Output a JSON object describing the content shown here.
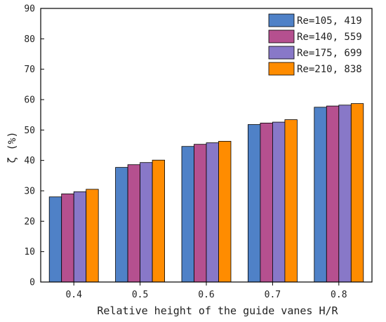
{
  "chart_data": {
    "type": "bar",
    "title": "",
    "xlabel": "Relative height of the guide vanes H/R",
    "ylabel": "ζ (%)",
    "categories": [
      "0.4",
      "0.5",
      "0.6",
      "0.7",
      "0.8"
    ],
    "ylim": [
      0,
      90
    ],
    "yticks": [
      "0",
      "10",
      "20",
      "30",
      "40",
      "50",
      "60",
      "70",
      "80",
      "90"
    ],
    "grid": false,
    "legend_position": "top-right",
    "series": [
      {
        "name": "Re=105, 419",
        "color": "#4f81c7",
        "values": [
          28.0,
          37.7,
          44.6,
          51.8,
          57.5
        ]
      },
      {
        "name": "Re=140, 559",
        "color": "#b5508f",
        "values": [
          29.0,
          38.6,
          45.3,
          52.3,
          57.9
        ]
      },
      {
        "name": "Re=175, 699",
        "color": "#8878c8",
        "values": [
          29.7,
          39.3,
          45.8,
          52.6,
          58.2
        ]
      },
      {
        "name": "Re=210, 838",
        "color": "#ff8c00",
        "values": [
          30.5,
          40.1,
          46.3,
          53.4,
          58.7
        ]
      }
    ]
  }
}
